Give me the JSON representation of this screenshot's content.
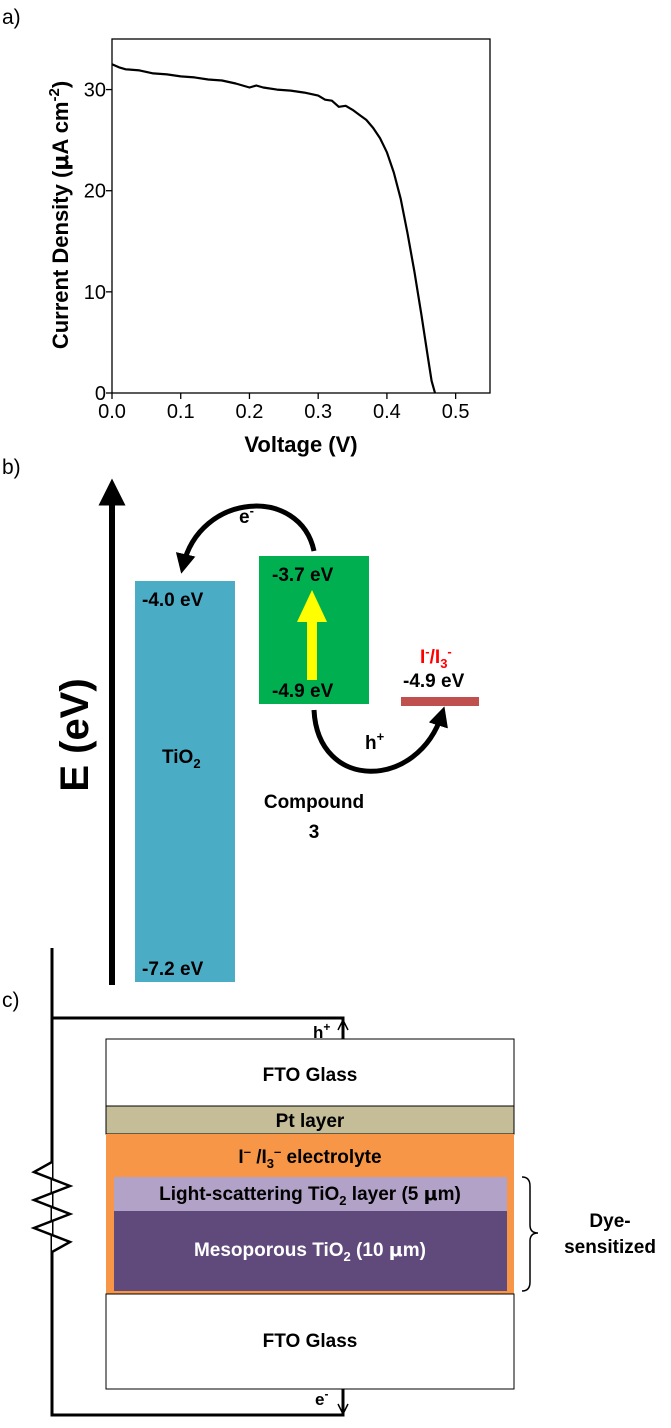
{
  "panel_labels": {
    "a": "a)",
    "b": "b)",
    "c": "c)"
  },
  "chart_data": {
    "type": "line",
    "xlabel": "Voltage (V)",
    "ylabel_main": "Current Density (",
    "ylabel_mu": "μ",
    "ylabel_unit": "A cm",
    "ylabel_exp": "-2",
    "ylabel_close": ")",
    "xlim": [
      0.0,
      0.55
    ],
    "ylim": [
      0,
      35
    ],
    "xticks": [
      "0.0",
      "0.1",
      "0.2",
      "0.3",
      "0.4",
      "0.5"
    ],
    "yticks": [
      "0",
      "10",
      "20",
      "30"
    ],
    "xtick_values": [
      0.0,
      0.1,
      0.2,
      0.3,
      0.4,
      0.5
    ],
    "ytick_values": [
      0,
      10,
      20,
      30
    ],
    "series": [
      {
        "x": [
          0.0,
          0.01,
          0.02,
          0.04,
          0.06,
          0.08,
          0.1,
          0.12,
          0.14,
          0.16,
          0.18,
          0.2,
          0.21,
          0.22,
          0.24,
          0.26,
          0.28,
          0.3,
          0.31,
          0.32,
          0.33,
          0.34,
          0.35,
          0.36,
          0.37,
          0.38,
          0.39,
          0.4,
          0.41,
          0.42,
          0.43,
          0.44,
          0.45,
          0.46,
          0.465,
          0.47
        ],
        "y": [
          32.5,
          32.2,
          32.0,
          31.9,
          31.6,
          31.5,
          31.3,
          31.2,
          31.0,
          30.9,
          30.6,
          30.2,
          30.4,
          30.2,
          30.0,
          29.9,
          29.7,
          29.4,
          29.0,
          28.9,
          28.3,
          28.4,
          28.0,
          27.5,
          27.0,
          26.2,
          25.2,
          23.8,
          21.8,
          19.2,
          15.8,
          12.0,
          7.8,
          3.4,
          1.2,
          0.0
        ]
      }
    ]
  },
  "energy_diagram": {
    "axis_label": "E (eV)",
    "tio2": {
      "label_main": "TiO",
      "label_sub": "2",
      "top": "-4.0 eV",
      "bottom": "-7.2 eV",
      "color": "#4bacc6"
    },
    "dye": {
      "top": "-3.7 eV",
      "bottom": "-4.9 eV",
      "name_line1": "Compound",
      "name_line2": "3",
      "color": "#00b050"
    },
    "electrolyte": {
      "label_a": "I",
      "label_a_sup": "-",
      "label_b": "/I",
      "label_b_sub": "3",
      "label_b_sup": "-",
      "level": "-4.9 eV",
      "color": "#c0504d",
      "label_color": "#ff0000"
    },
    "electron": {
      "label": "e",
      "sup": "-"
    },
    "hole": {
      "label": "h",
      "sup": "+"
    },
    "excitation_color": "#ffff00"
  },
  "cell_diagram": {
    "layers": {
      "fto_top": "FTO Glass",
      "pt": "Pt layer",
      "electrolyte_a": "I",
      "electrolyte_a_sup": "–",
      "electrolyte_b": " /I",
      "electrolyte_b_sub": "3",
      "electrolyte_b_sup": "–",
      "electrolyte_c": " electrolyte",
      "scatter_a": "Light-scattering TiO",
      "scatter_sub": "2",
      "scatter_b": " layer (5 ",
      "scatter_mu": "μ",
      "scatter_c": "m)",
      "meso_a": "Mesoporous TiO",
      "meso_sub": "2",
      "meso_b": " (10 ",
      "meso_mu": "μ",
      "meso_c": "m)",
      "fto_bottom": "FTO Glass"
    },
    "bracket_line1": "Dye-",
    "bracket_line2": "sensitized",
    "hole": {
      "label": "h",
      "sup": "+"
    },
    "electron": {
      "label": "e",
      "sup": "-"
    },
    "colors": {
      "pt": "#c4bd97",
      "electrolyte": "#f79646",
      "scatter": "#b3a2c7",
      "meso": "#604a7b"
    }
  }
}
